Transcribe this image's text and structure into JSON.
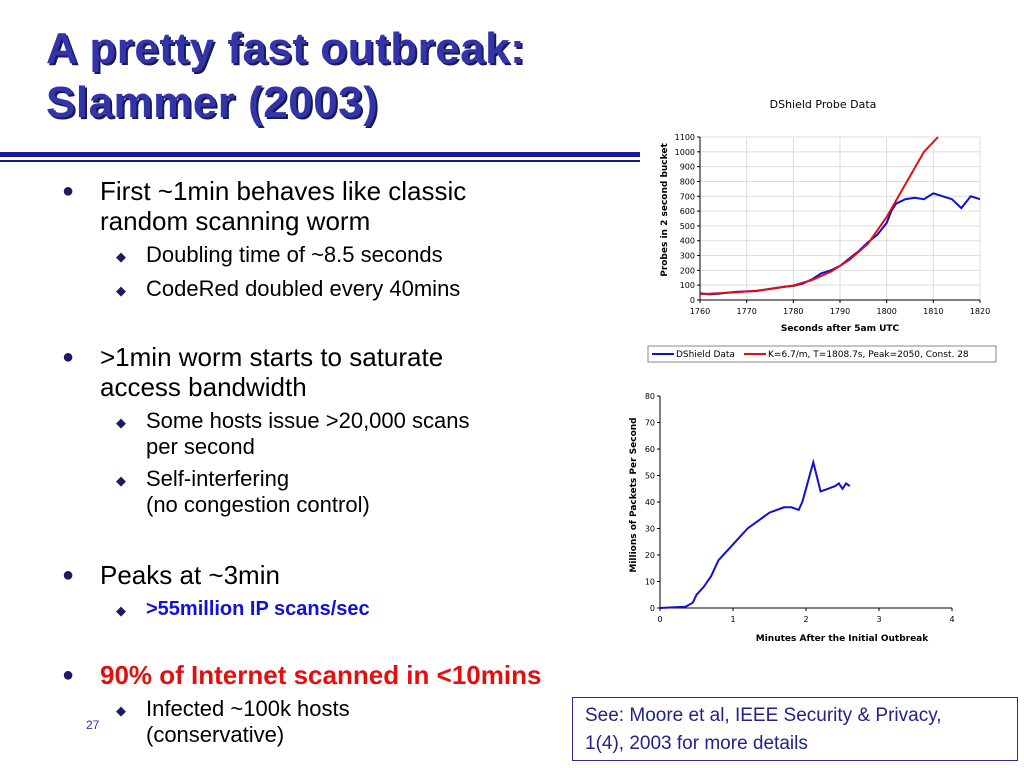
{
  "slide": {
    "title_line1": "A pretty fast outbreak:",
    "title_line2": "Slammer (2003)",
    "page_number": "27",
    "reference_line1": "See: Moore et al, IEEE Security & Privacy,",
    "reference_line2": "1(4), 2003 for more details"
  },
  "bullets": [
    {
      "text_line1": "First ~1min behaves like classic",
      "text_line2": "random scanning worm",
      "sub": [
        {
          "line1": "Doubling time of ~8.5 seconds"
        },
        {
          "line1": "CodeRed doubled every 40mins"
        }
      ]
    },
    {
      "text_line1": ">1min worm starts to saturate",
      "text_line2": "access bandwidth",
      "sub": [
        {
          "line1": "Some hosts issue >20,000 scans",
          "line2": "per second"
        },
        {
          "line1": "Self-interfering",
          "line2": "(no congestion control)"
        }
      ]
    },
    {
      "text_line1": "Peaks at ~3min",
      "sub": [
        {
          "line1": ">55million IP scans/sec"
        }
      ]
    },
    {
      "text_line1": "90% of Internet scanned in <10mins",
      "sub": [
        {
          "line1": "Infected ~100k hosts",
          "line2": "(conservative)"
        }
      ]
    }
  ],
  "chart_data": [
    {
      "type": "line",
      "title": "DShield Probe Data",
      "xlabel": "Seconds after 5am UTC",
      "ylabel": "Probes in 2 second bucket",
      "xlim": [
        1760,
        1820
      ],
      "ylim": [
        0,
        1100
      ],
      "x_ticks": [
        "1760",
        "1770",
        "1780",
        "1790",
        "1800",
        "1810",
        "1820"
      ],
      "y_ticks": [
        "0",
        "100",
        "200",
        "300",
        "400",
        "500",
        "600",
        "700",
        "800",
        "900",
        "1000",
        "1100"
      ],
      "legend_position": "bottom",
      "series": [
        {
          "name": "DShield Data",
          "color": "#1010cc",
          "x": [
            1760,
            1762,
            1764,
            1766,
            1768,
            1770,
            1772,
            1774,
            1776,
            1778,
            1780,
            1782,
            1784,
            1786,
            1788,
            1790,
            1792,
            1794,
            1796,
            1798,
            1800,
            1801,
            1802,
            1804,
            1806,
            1808,
            1810,
            1812,
            1814,
            1816,
            1818,
            1820
          ],
          "y": [
            45,
            38,
            42,
            50,
            55,
            58,
            60,
            70,
            80,
            90,
            95,
            110,
            140,
            180,
            200,
            230,
            280,
            330,
            390,
            440,
            520,
            600,
            650,
            680,
            690,
            680,
            720,
            700,
            680,
            620,
            700,
            680
          ]
        },
        {
          "name": "K=6.7/m, T=1808.7s, Peak=2050, Const. 28",
          "color": "#e01010",
          "x": [
            1760,
            1764,
            1768,
            1772,
            1776,
            1780,
            1784,
            1788,
            1792,
            1796,
            1800,
            1804,
            1808,
            1811
          ],
          "y": [
            40,
            45,
            52,
            62,
            78,
            98,
            135,
            190,
            270,
            380,
            560,
            780,
            1000,
            1100
          ]
        }
      ]
    },
    {
      "type": "line",
      "title": "",
      "xlabel": "Minutes After the Initial Outbreak",
      "ylabel": "Millions of Packets Per Second",
      "xlim": [
        0,
        4
      ],
      "ylim": [
        0,
        80
      ],
      "x_ticks": [
        "0",
        "1",
        "2",
        "3",
        "4"
      ],
      "y_ticks": [
        "0",
        "10",
        "20",
        "30",
        "40",
        "50",
        "60",
        "70",
        "80"
      ],
      "series": [
        {
          "name": "",
          "color": "#1010cc",
          "x": [
            0,
            0.2,
            0.35,
            0.45,
            0.5,
            0.6,
            0.7,
            0.8,
            0.9,
            1.0,
            1.1,
            1.2,
            1.3,
            1.4,
            1.5,
            1.6,
            1.7,
            1.8,
            1.9,
            1.95,
            2.0,
            2.05,
            2.1,
            2.2,
            2.3,
            2.4,
            2.45,
            2.5,
            2.55,
            2.6
          ],
          "y": [
            0,
            0.3,
            0.5,
            2,
            5,
            8,
            12,
            18,
            21,
            24,
            27,
            30,
            32,
            34,
            36,
            37,
            38,
            38,
            37,
            40,
            45,
            50,
            55,
            44,
            45,
            46,
            47,
            45,
            47,
            46
          ]
        }
      ]
    }
  ]
}
